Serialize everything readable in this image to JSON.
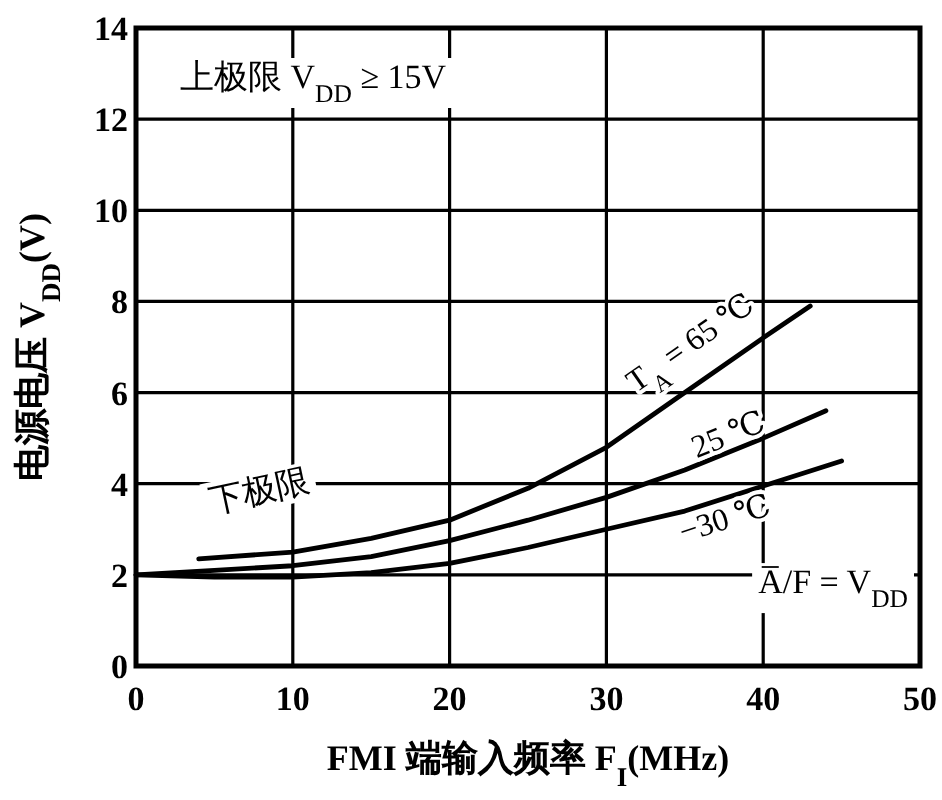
{
  "chart_data": {
    "type": "line",
    "xlabel": "FMI 端输入频率 F$_{I}$(MHz)",
    "ylabel": "电源电压 V$_{DD}$(V)",
    "series": [
      {
        "name": "T$_{A}$ = 65 ℃",
        "color": "#000000",
        "x": [
          4,
          10,
          15,
          20,
          25,
          30,
          35,
          40,
          43
        ],
        "values": [
          2.35,
          2.5,
          2.8,
          3.2,
          3.9,
          4.8,
          6.0,
          7.2,
          7.9
        ]
      },
      {
        "name": "25 ℃",
        "color": "#000000",
        "x": [
          0,
          5,
          10,
          15,
          20,
          25,
          30,
          35,
          40,
          44
        ],
        "values": [
          2.0,
          2.1,
          2.2,
          2.4,
          2.75,
          3.2,
          3.7,
          4.3,
          5.0,
          5.6
        ]
      },
      {
        "name": "−30 ℃",
        "color": "#000000",
        "x": [
          0,
          5,
          10,
          15,
          20,
          25,
          30,
          35,
          40,
          45
        ],
        "values": [
          2.0,
          1.95,
          1.95,
          2.05,
          2.25,
          2.6,
          3.0,
          3.4,
          3.95,
          4.5
        ]
      }
    ],
    "annotations": [
      "上极限 V$_{DD}$ ≥ 15V",
      "下极限",
      "A̅/F = V$_{DD}$"
    ],
    "xlim": [
      0,
      50
    ],
    "xticks": [
      0,
      10,
      20,
      30,
      40,
      50
    ],
    "ylim": [
      0,
      14
    ],
    "yticks": [
      0,
      2,
      4,
      6,
      8,
      10,
      12,
      14
    ],
    "grid": true,
    "marker": "none",
    "line_style": "solid"
  }
}
